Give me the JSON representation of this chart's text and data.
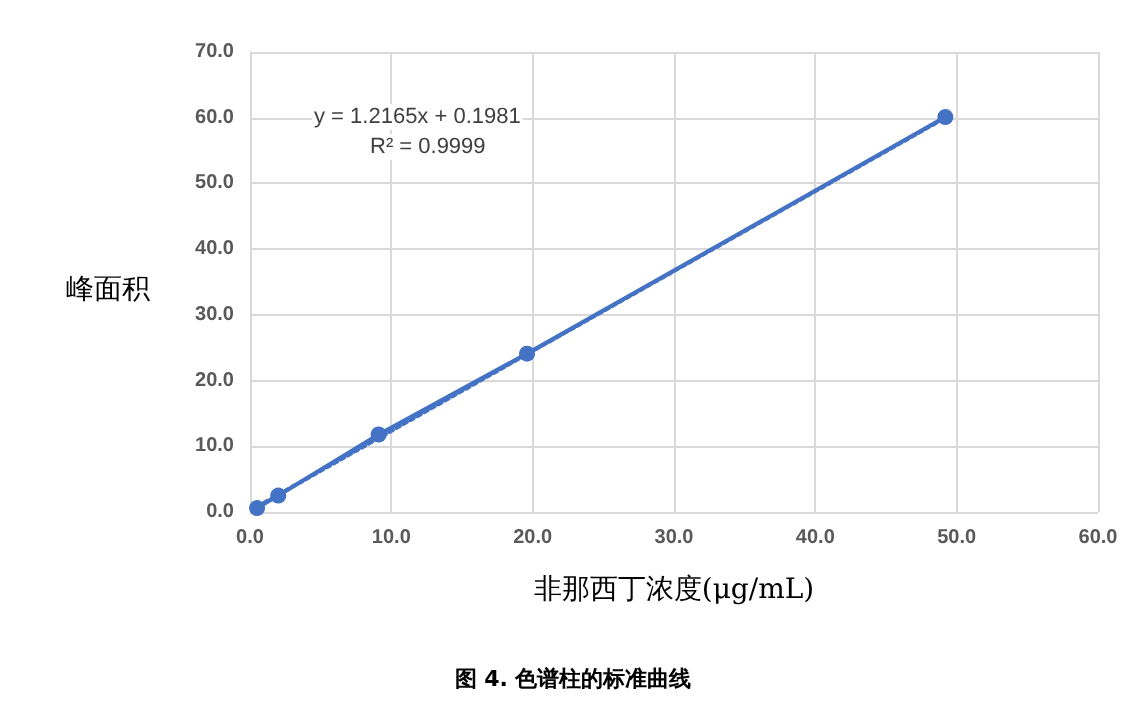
{
  "chart_data": {
    "type": "line",
    "title": "图 4. 色谱柱的标准曲线",
    "xlabel": "非那西丁浓度(μg/mL)",
    "ylabel": "峰面积",
    "annotations": [
      "y = 1.2165x + 0.1981",
      "R² = 0.9999"
    ],
    "x": [
      0.5,
      2.0,
      9.1,
      19.6,
      49.2
    ],
    "series": [
      {
        "color": "#4472c4",
        "values": [
          0.6,
          2.5,
          11.8,
          24.1,
          60.1
        ],
        "marker": "circle",
        "line_style": "solid"
      },
      {
        "type": "line",
        "color": "#4472c4",
        "x": [
          0.5,
          49.2
        ],
        "values": [
          0.8,
          60.0
        ],
        "marker": "none",
        "line_style": "dotted"
      }
    ],
    "xlim": [
      0,
      60
    ],
    "xticks": [
      {
        "value": 0,
        "label": "0.0"
      },
      {
        "value": 10,
        "label": "10.0"
      },
      {
        "value": 20,
        "label": "20.0"
      },
      {
        "value": 30,
        "label": "30.0"
      },
      {
        "value": 40,
        "label": "40.0"
      },
      {
        "value": 50,
        "label": "50.0"
      },
      {
        "value": 60,
        "label": "60.0"
      }
    ],
    "ylim": [
      0,
      70
    ],
    "yticks": [
      {
        "value": 0,
        "label": "0.0"
      },
      {
        "value": 10,
        "label": "10.0"
      },
      {
        "value": 20,
        "label": "20.0"
      },
      {
        "value": 30,
        "label": "30.0"
      },
      {
        "value": 40,
        "label": "40.0"
      },
      {
        "value": 50,
        "label": "50.0"
      },
      {
        "value": 60,
        "label": "60.0"
      },
      {
        "value": 70,
        "label": "70.0"
      }
    ],
    "grid": true
  }
}
